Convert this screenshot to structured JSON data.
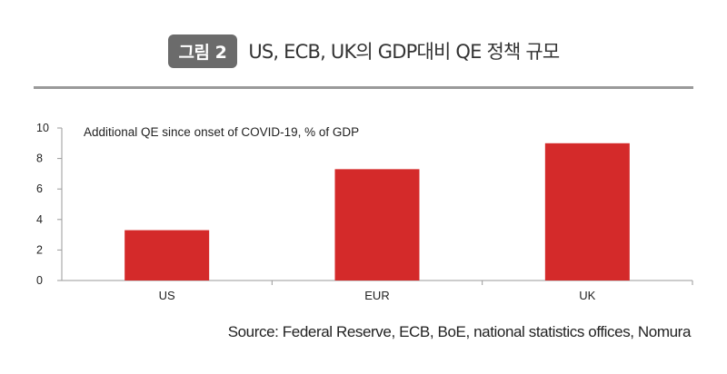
{
  "header": {
    "badge": "그림 2",
    "title": "US, ECB, UK의 GDP대비 QE 정책 규모"
  },
  "chart_data": {
    "type": "bar",
    "title": "Additional QE since onset of COVID-19, % of GDP",
    "categories": [
      "US",
      "EUR",
      "UK"
    ],
    "values": [
      3.3,
      7.3,
      9.0
    ],
    "ylim": [
      0,
      10
    ],
    "yticks": [
      0,
      2,
      4,
      6,
      8,
      10
    ],
    "xlabel": "",
    "ylabel": "",
    "grid": false,
    "bar_color": "#d42a2a"
  },
  "footer": {
    "source": "Source: Federal Reserve, ECB, BoE, national statistics offices, Nomura"
  }
}
